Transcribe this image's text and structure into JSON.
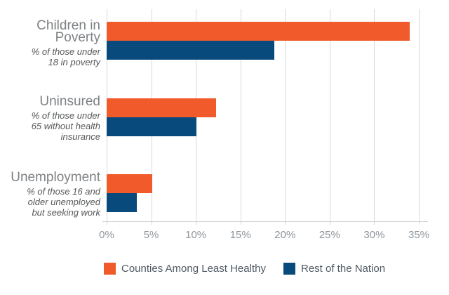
{
  "chart_data": {
    "type": "bar",
    "orientation": "horizontal",
    "title": "",
    "categories": [
      {
        "label": "Children in Poverty",
        "label_lines": [
          "Children in",
          "Poverty"
        ],
        "sublabel": "% of those under 18 in poverty",
        "sublabel_lines": [
          "% of those under",
          "18 in poverty"
        ]
      },
      {
        "label": "Uninsured",
        "label_lines": [
          "Uninsured"
        ],
        "sublabel": "% of those under 65 without health insurance",
        "sublabel_lines": [
          "% of those under",
          "65 without health",
          "insurance"
        ]
      },
      {
        "label": "Unemployment",
        "label_lines": [
          "Unemployment"
        ],
        "sublabel": "% of those 16 and older unemployed but seeking work",
        "sublabel_lines": [
          "% of those 16 and",
          "older unemployed",
          "but seeking work"
        ]
      }
    ],
    "series": [
      {
        "name": "Counties Among Least Healthy",
        "color": "#f15b2b",
        "values": [
          34,
          12.3,
          5.1
        ]
      },
      {
        "name": "Rest of the Nation",
        "color": "#094a7c",
        "values": [
          18.8,
          10.1,
          3.4
        ]
      }
    ],
    "x_ticks": [
      "0%",
      "5%",
      "10%",
      "15%",
      "20%",
      "25%",
      "30%",
      "35%"
    ],
    "xlim": [
      0,
      35
    ],
    "unit": "%",
    "grid": "vertical",
    "legend_position": "bottom"
  },
  "colors": {
    "bar_orange": "#f15b2b",
    "bar_blue": "#094a7c",
    "gridline": "#d9d8d4",
    "axis_line": "#d2d1cd",
    "tick_label": "#8f969c",
    "category_label": "#7e8184",
    "category_sublabel": "#55575a",
    "legend_text": "#4f5963",
    "background": "#ffffff"
  }
}
